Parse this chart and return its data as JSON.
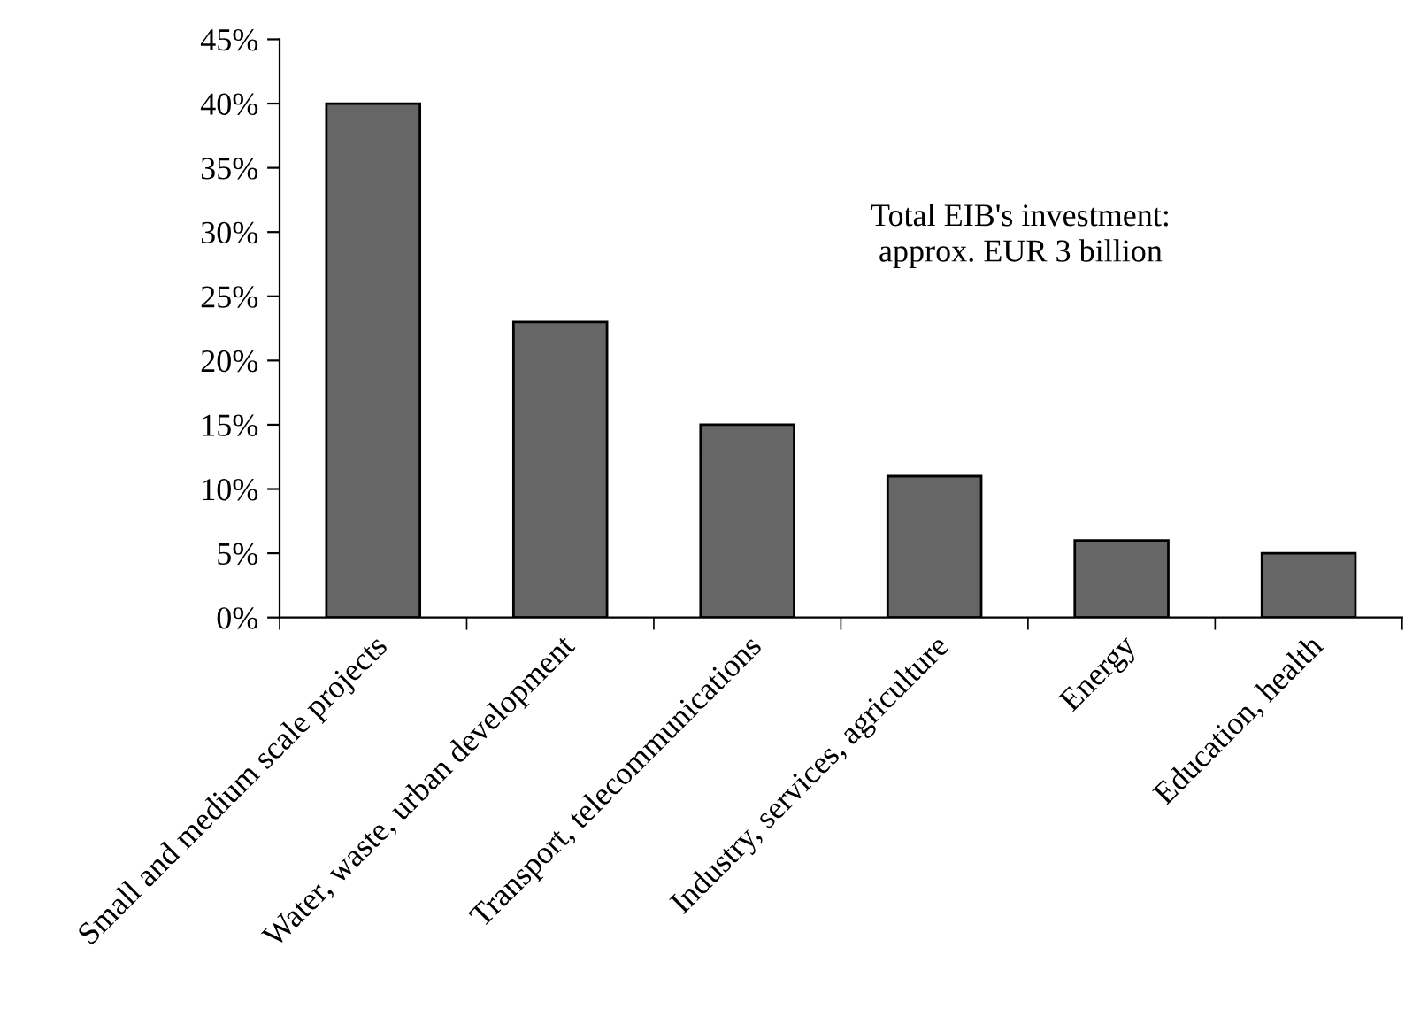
{
  "chart_data": {
    "type": "bar",
    "categories": [
      "Small and medium scale projects",
      "Water, waste, urban development",
      "Transport, telecommunications",
      "Industry, services, agriculture",
      "Energy",
      "Education, health"
    ],
    "values": [
      40,
      23,
      15,
      11,
      6,
      5
    ],
    "color": "#666666",
    "ylim": [
      0,
      45
    ],
    "yticks": [
      {
        "value": 0,
        "label": "0%"
      },
      {
        "value": 5,
        "label": "5%"
      },
      {
        "value": 10,
        "label": "10%"
      },
      {
        "value": 15,
        "label": "15%"
      },
      {
        "value": 20,
        "label": "20%"
      },
      {
        "value": 25,
        "label": "25%"
      },
      {
        "value": 30,
        "label": "30%"
      },
      {
        "value": 35,
        "label": "35%"
      },
      {
        "value": 40,
        "label": "40%"
      },
      {
        "value": 45,
        "label": "45%"
      }
    ],
    "annotations": [
      "Total EIB's investment:\napprox. EUR 3 billion"
    ],
    "grid": false,
    "legend": false
  }
}
